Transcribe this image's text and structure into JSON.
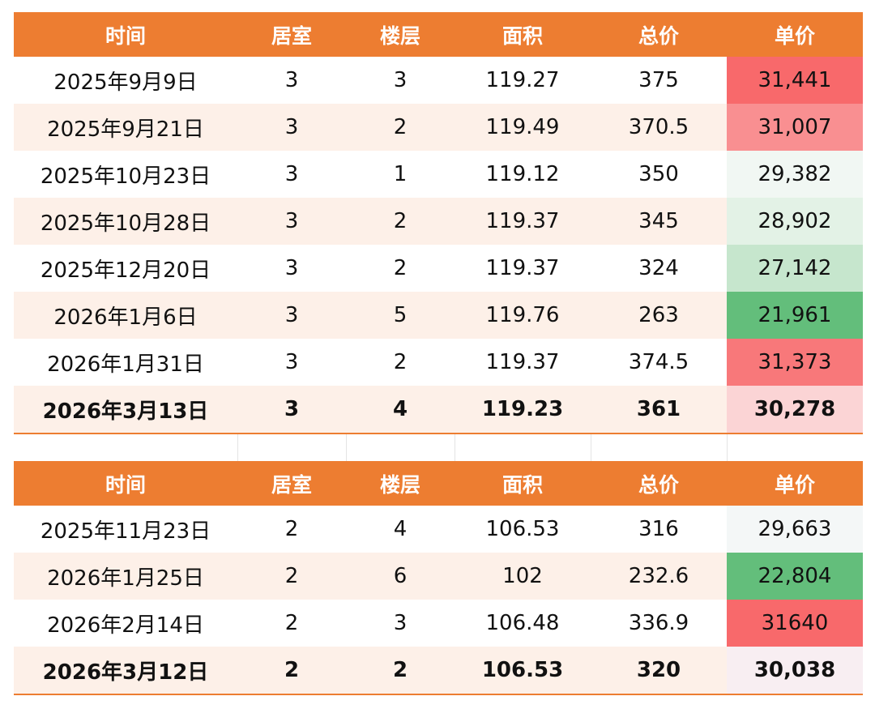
{
  "tables": [
    {
      "header": [
        "时间",
        "居室",
        "楼层",
        "面积",
        "总价",
        "单价"
      ],
      "rows": [
        [
          "2025年9月9日",
          "3",
          "3",
          "119.27",
          "375",
          "31,441"
        ],
        [
          "2025年9月21日",
          "3",
          "2",
          "119.49",
          "370.5",
          "31,007"
        ],
        [
          "2025年10月23日",
          "3",
          "1",
          "119.12",
          "350",
          "29,382"
        ],
        [
          "2025年10月28日",
          "3",
          "2",
          "119.37",
          "345",
          "28,902"
        ],
        [
          "2025年12月20日",
          "3",
          "2",
          "119.37",
          "324",
          "27,142"
        ],
        [
          "2026年1月6日",
          "3",
          "5",
          "119.76",
          "263",
          "21,961"
        ],
        [
          "2026年1月31日",
          "3",
          "2",
          "119.37",
          "374.5",
          "31,373"
        ],
        [
          "2026年3月13日",
          "3",
          "4",
          "119.23",
          "361",
          "30,278"
        ]
      ],
      "price_colors": [
        "#f8696b",
        "#f98f91",
        "#f1f7f3",
        "#e3f2e6",
        "#c6e6cd",
        "#63be7b",
        "#f8787a",
        "#fbd4d5"
      ]
    },
    {
      "header": [
        "时间",
        "居室",
        "楼层",
        "面积",
        "总价",
        "单价"
      ],
      "rows": [
        [
          "2025年11月23日",
          "2",
          "4",
          "106.53",
          "316",
          "29,663"
        ],
        [
          "2026年1月25日",
          "2",
          "6",
          "102",
          "232.6",
          "22,804"
        ],
        [
          "2026年2月14日",
          "2",
          "3",
          "106.48",
          "336.9",
          "31640"
        ],
        [
          "2026年3月12日",
          "2",
          "2",
          "106.53",
          "320",
          "30,038"
        ]
      ],
      "price_colors": [
        "#f4f7f7",
        "#63be7b",
        "#f8696b",
        "#f8eef2"
      ]
    }
  ]
}
